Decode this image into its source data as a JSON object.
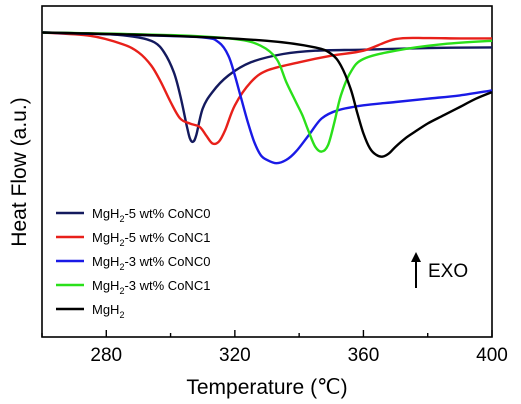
{
  "chart_data": {
    "type": "line",
    "xlabel": "Temperature (℃)",
    "ylabel": "Heat Flow (a.u.)",
    "xlim": [
      260,
      400
    ],
    "ylim": [
      0,
      100
    ],
    "x_ticks": [
      280,
      320,
      360,
      400
    ],
    "y_ticks": [],
    "grid": false,
    "legend_position": "bottom-left",
    "annotation": "EXO",
    "series": [
      {
        "name_main": "MgH",
        "name_sub": "2",
        "name_rest": "-5 wt% CoNC0",
        "color": "#141a5e",
        "x": [
          260,
          280,
          290,
          295,
          298,
          301,
          303,
          305,
          306,
          307,
          308,
          310,
          313,
          318,
          325,
          335,
          345,
          360,
          380,
          400
        ],
        "y": [
          92,
          91.5,
          90.5,
          89,
          86,
          80,
          73,
          64,
          60,
          59,
          61,
          69,
          74,
          79,
          83,
          85.5,
          86.5,
          86.8,
          87.3,
          87.5
        ]
      },
      {
        "name_main": "MgH",
        "name_sub": "2",
        "name_rest": "-5 wt% CoNC1",
        "color": "#e8201a",
        "x": [
          260,
          275,
          285,
          290,
          294,
          297,
          300,
          303,
          306,
          309,
          311,
          313,
          315,
          317,
          320,
          325,
          330,
          340,
          350,
          360,
          370,
          380,
          390,
          400
        ],
        "y": [
          92,
          91,
          88.5,
          86,
          82,
          77,
          71,
          66,
          64.5,
          63.5,
          61,
          58.5,
          59,
          62.5,
          70,
          77,
          80.5,
          83,
          85,
          86.5,
          90,
          90.3,
          90.2,
          90.2
        ]
      },
      {
        "name_main": "MgH",
        "name_sub": "2",
        "name_rest": "-3 wt% CoNC0",
        "color": "#1a1ae6",
        "x": [
          260,
          290,
          310,
          315,
          318,
          320,
          322,
          324,
          326,
          328,
          330,
          333,
          336,
          339,
          343,
          347,
          352,
          360,
          370,
          380,
          390,
          400
        ],
        "y": [
          92,
          91.2,
          90.5,
          89,
          85,
          79,
          72,
          65,
          59,
          55,
          53.5,
          52.5,
          53.5,
          56,
          61,
          66,
          68.5,
          70,
          71,
          72,
          73,
          74.5
        ]
      },
      {
        "name_main": "MgH",
        "name_sub": "2",
        "name_rest": "-3 wt% CoNC1",
        "color": "#2ae01a",
        "x": [
          260,
          300,
          320,
          328,
          333,
          336,
          339,
          341,
          343,
          345,
          347,
          349,
          351,
          353,
          356,
          360,
          370,
          385,
          400
        ],
        "y": [
          92,
          91.2,
          90,
          88,
          84,
          77,
          71,
          67,
          62,
          57.5,
          56,
          58,
          65,
          73,
          80,
          84,
          86.5,
          88.5,
          89.5
        ]
      },
      {
        "name_main": "MgH",
        "name_sub": "2",
        "name_rest": "",
        "color": "#000000",
        "x": [
          260,
          300,
          330,
          345,
          350,
          353,
          356,
          358,
          360,
          362,
          364,
          366,
          368,
          370,
          373,
          376,
          380,
          385,
          390,
          395,
          400
        ],
        "y": [
          92,
          91,
          89.5,
          87.5,
          85.5,
          82,
          75,
          68,
          61.5,
          57,
          55,
          54.5,
          55.5,
          57.5,
          60,
          62,
          64.5,
          67,
          69.5,
          72,
          74
        ]
      }
    ]
  }
}
